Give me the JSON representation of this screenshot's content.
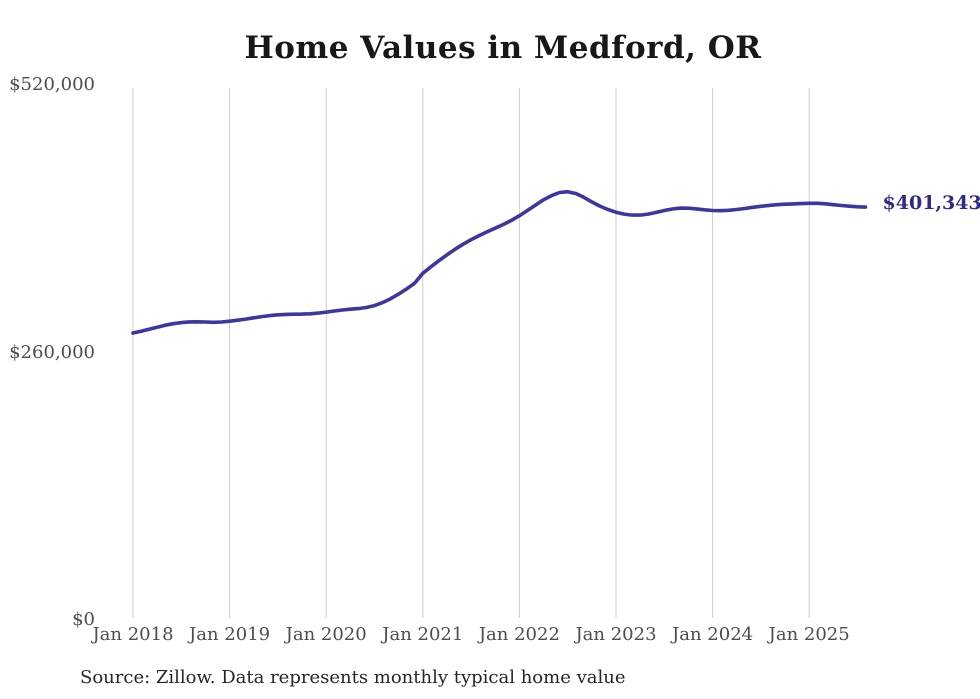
{
  "source_note": "Source: Zillow. Data represents monthly typical home value",
  "colors": {
    "line": "#3c36a0",
    "end_label": "#2d2a88",
    "grid": "#cccccc",
    "axis_text": "#4d4d4d",
    "title_text": "#181818",
    "source_text": "#262626",
    "background": "#ffffff"
  },
  "chart_data": {
    "type": "line",
    "title": "Home Values in Medford, OR",
    "xlabel": "",
    "ylabel": "",
    "ylim": [
      0,
      520000
    ],
    "grid": "vertical-only",
    "legend": "none",
    "start_month": "2018-01",
    "end_month": "2025-08",
    "end_annotation": "$401,343",
    "end_value": 401343,
    "yticks": [
      {
        "value": 0,
        "label": "$0"
      },
      {
        "value": 260000,
        "label": "$260,000"
      },
      {
        "value": 520000,
        "label": "$520,000"
      }
    ],
    "xticks": [
      {
        "month_index": 0,
        "label": "Jan 2018"
      },
      {
        "month_index": 12,
        "label": "Jan 2019"
      },
      {
        "month_index": 24,
        "label": "Jan 2020"
      },
      {
        "month_index": 36,
        "label": "Jan 2021"
      },
      {
        "month_index": 48,
        "label": "Jan 2022"
      },
      {
        "month_index": 60,
        "label": "Jan 2023"
      },
      {
        "month_index": 72,
        "label": "Jan 2024"
      },
      {
        "month_index": 84,
        "label": "Jan 2025"
      }
    ],
    "series": [
      {
        "name": "Typical home value (monthly)",
        "values": [
          279000,
          280700,
          282600,
          284600,
          286500,
          288000,
          289100,
          289700,
          289800,
          289600,
          289400,
          289600,
          290400,
          291400,
          292500,
          293700,
          294900,
          295900,
          296600,
          297000,
          297200,
          297300,
          297600,
          298300,
          299300,
          300300,
          301300,
          302100,
          302700,
          303700,
          305600,
          308500,
          312300,
          316800,
          321800,
          327500,
          337000,
          343200,
          349200,
          354900,
          360300,
          365200,
          369600,
          373600,
          377300,
          380800,
          384400,
          388400,
          393000,
          398000,
          403300,
          408400,
          412500,
          415500,
          416300,
          414500,
          410800,
          406400,
          402300,
          399000,
          396400,
          394500,
          393500,
          393500,
          394500,
          396200,
          398000,
          399500,
          400400,
          400300,
          399600,
          398700,
          398000,
          397800,
          398200,
          399000,
          400000,
          401100,
          402100,
          403000,
          403700,
          404100,
          404400,
          404700,
          405000,
          405000,
          404500,
          403700,
          402900,
          402200,
          401600,
          401343
        ]
      }
    ]
  }
}
